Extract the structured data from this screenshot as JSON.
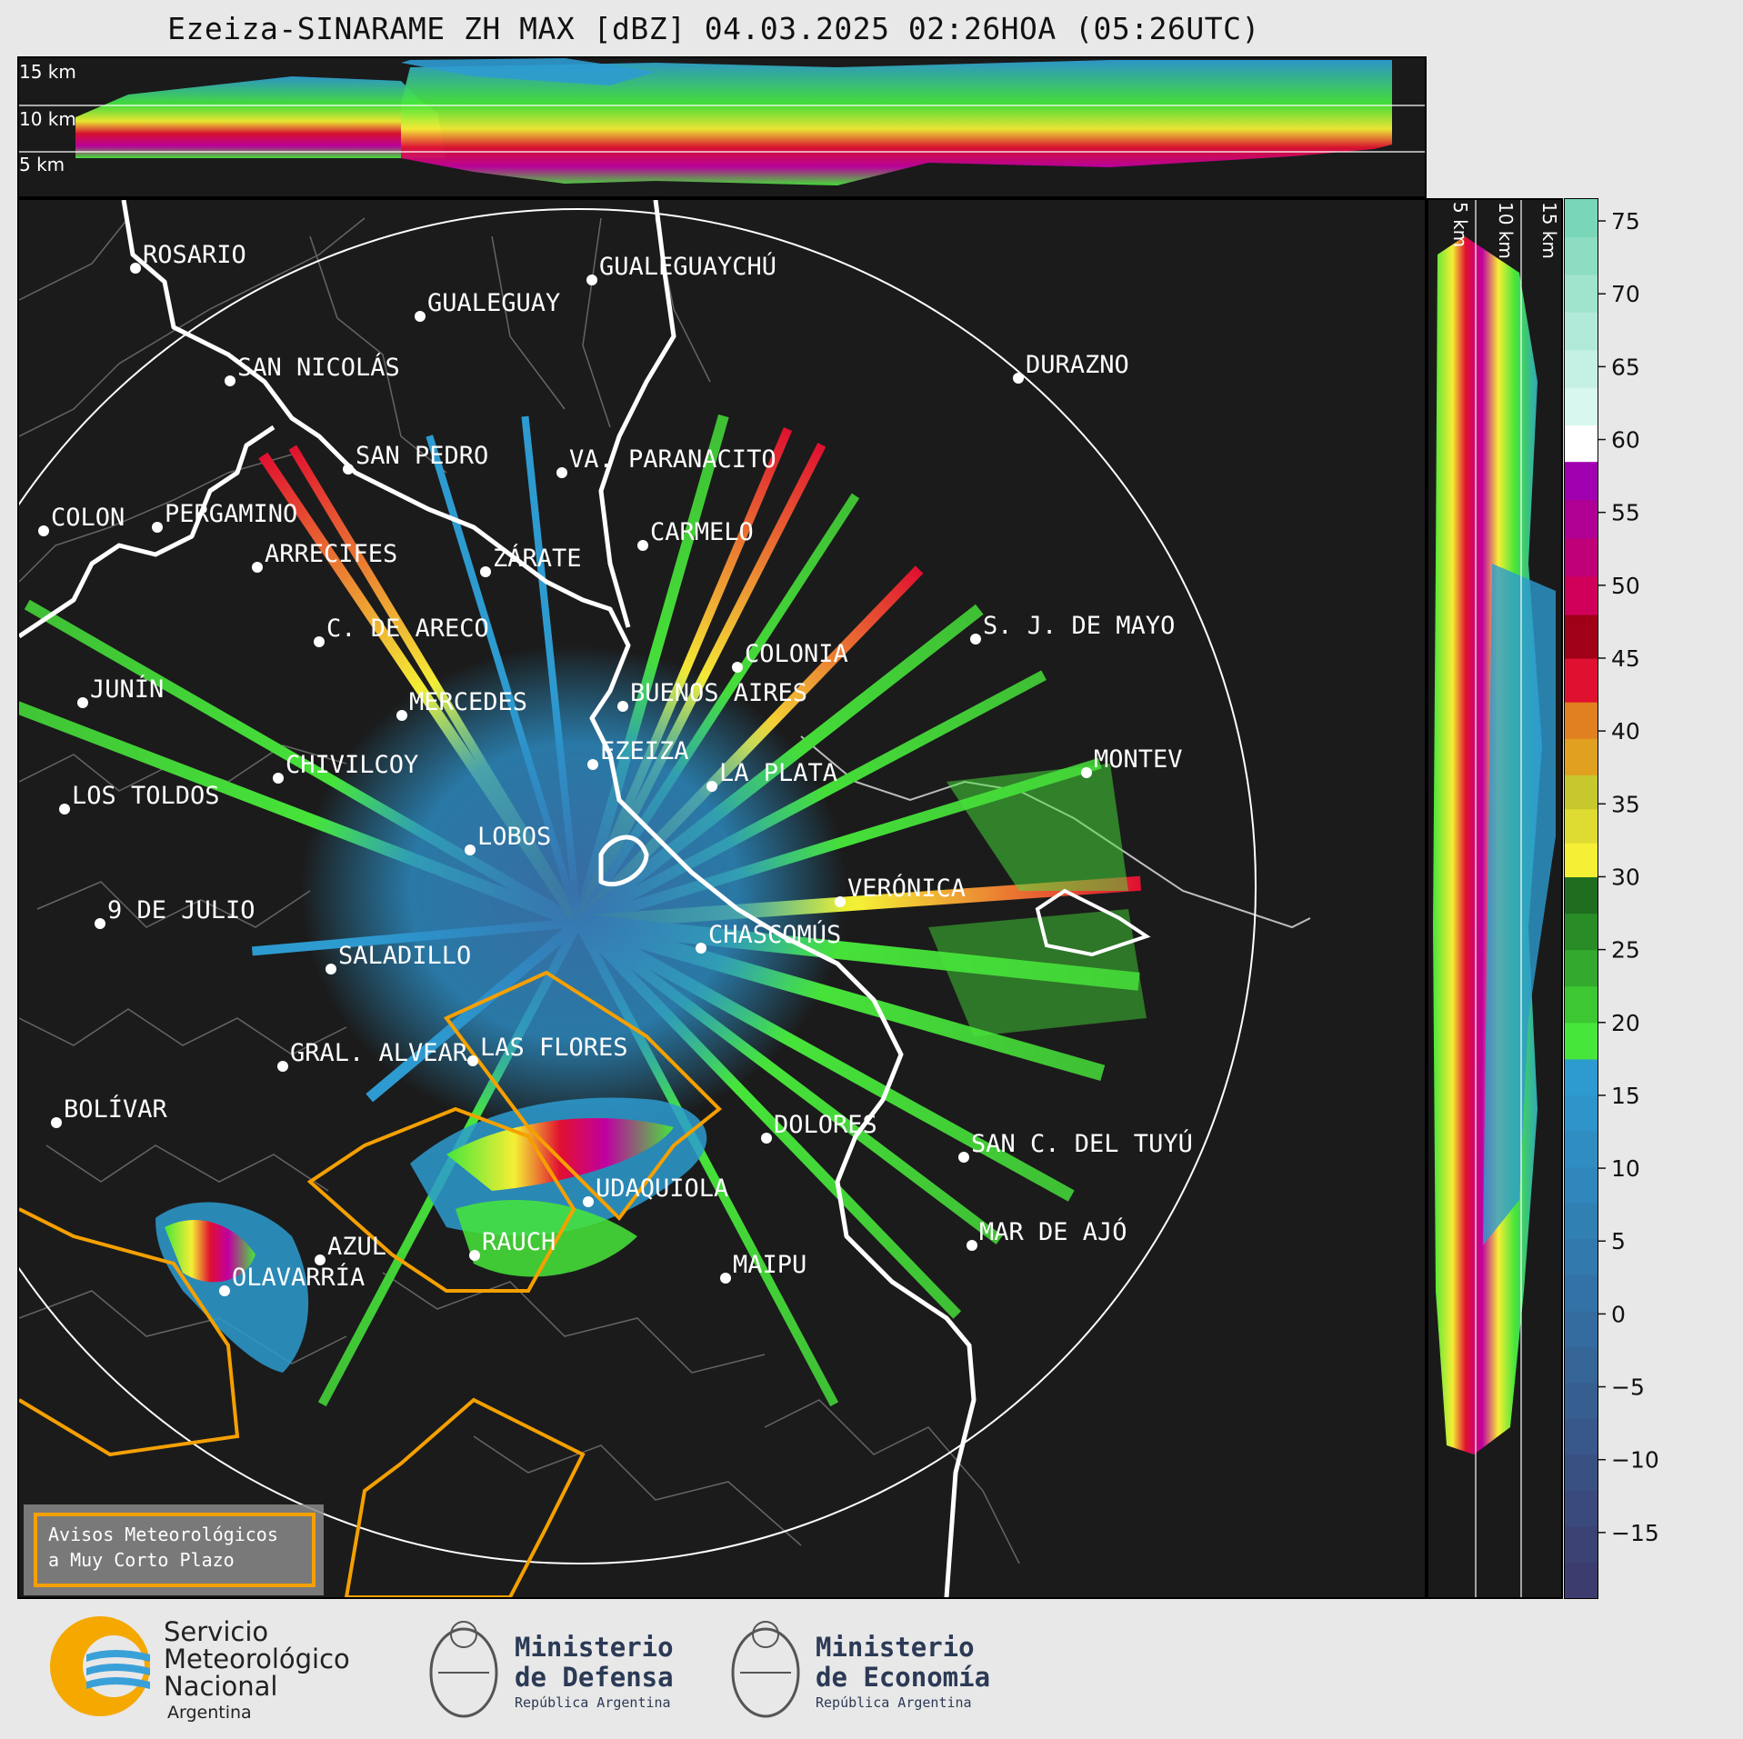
{
  "header": {
    "title": "Ezeiza-SINARAME ZH MAX [dBZ] 04.03.2025 02:26HOA (05:26UTC)"
  },
  "top_section": {
    "altitude_labels": [
      "15 km",
      "10 km",
      "5 km"
    ]
  },
  "right_section": {
    "altitude_labels": [
      "5 km",
      "10 km",
      "15 km"
    ]
  },
  "colorbar": {
    "unit": "dBZ",
    "ticks": [
      "75",
      "70",
      "65",
      "60",
      "55",
      "50",
      "45",
      "40",
      "35",
      "30",
      "25",
      "20",
      "15",
      "10",
      "5",
      "0",
      "−5",
      "−10",
      "−15"
    ],
    "tick_values": [
      75,
      70,
      65,
      60,
      55,
      50,
      45,
      40,
      35,
      30,
      25,
      20,
      15,
      10,
      5,
      0,
      -5,
      -10,
      -15
    ],
    "range": [
      -19.5,
      76.5
    ],
    "colors": [
      {
        "from": -19.5,
        "to": 17.5,
        "start": "#3c3c6e",
        "end": "#2d9bd0"
      },
      {
        "from": 17.5,
        "to": 30,
        "start": "#47e63a",
        "end": "#1f6e1f"
      },
      {
        "from": 30,
        "to": 37,
        "start": "#f5ef35",
        "end": "#c7c72e"
      },
      {
        "from": 37,
        "to": 42,
        "start": "#e0a020",
        "end": "#e08020"
      },
      {
        "from": 42,
        "to": 48,
        "start": "#e01030",
        "end": "#a00018"
      },
      {
        "from": 48,
        "to": 58.5,
        "start": "#d0005a",
        "end": "#a000b0"
      },
      {
        "from": 58.5,
        "to": 61,
        "start": "#ffffff",
        "end": "#ffffff"
      },
      {
        "from": 61,
        "to": 76.5,
        "start": "#d8f8ef",
        "end": "#7ad6b8"
      }
    ]
  },
  "map": {
    "radar_site": "EZEIZA",
    "cities": [
      "ROSARIO",
      "GUALEGUAYCHÚ",
      "GUALEGUAY",
      "SAN NICOLÁS",
      "DURAZNO",
      "SAN PEDRO",
      "VA. PARANACITO",
      "COLON",
      "PERGAMINO",
      "CARMELO",
      "ARRECIFES",
      "ZÁRATE",
      "S. J. DE MAYO",
      "C. DE ARECO",
      "COLONIA",
      "JUNÍN",
      "BUENOS AIRES",
      "MERCEDES",
      "EZEIZA",
      "CHIVILCOY",
      "LA PLATA",
      "MONTEV",
      "LOS TOLDOS",
      "LOBOS",
      "VERÓNICA",
      "9 DE JULIO",
      "CHASCOMÚS",
      "SALADILLO",
      "GRAL. ALVEAR",
      "LAS FLORES",
      "BOLÍVAR",
      "DOLORES",
      "SAN C. DEL TUYÚ",
      "UDAQUIOLA",
      "MAR DE AJÓ",
      "AZUL",
      "RAUCH",
      "MAIPU",
      "OLAVARRÍA"
    ],
    "legend_text": [
      "Avisos Meteorológicos",
      "a Muy Corto Plazo"
    ],
    "colors": {
      "warning_polygon": "#f5a000",
      "coastline": "#ffffff",
      "range_ring": "#ffffff",
      "background": "#1b1b1b"
    }
  },
  "footer": {
    "smn": [
      "Servicio",
      "Meteorológico",
      "Nacional",
      "Argentina"
    ],
    "defensa": [
      "Ministerio",
      "de Defensa",
      "República Argentina"
    ],
    "economia": [
      "Ministerio",
      "de Economía",
      "República Argentina"
    ]
  }
}
